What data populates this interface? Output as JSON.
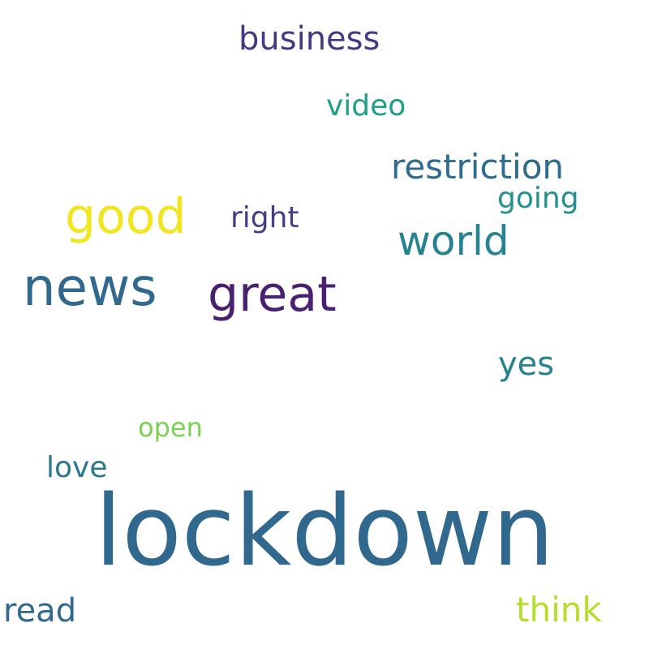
{
  "words": [
    {
      "id": "lockdown",
      "text": "lockdown",
      "color": "#31688e"
    },
    {
      "id": "news",
      "text": "news",
      "color": "#31688e"
    },
    {
      "id": "great",
      "text": "great",
      "color": "#482173"
    },
    {
      "id": "good",
      "text": "good",
      "color": "#f0e51e"
    },
    {
      "id": "world",
      "text": "world",
      "color": "#26828e"
    },
    {
      "id": "restriction",
      "text": "restriction",
      "color": "#2f6b8e"
    },
    {
      "id": "business",
      "text": "business",
      "color": "#443983"
    },
    {
      "id": "think",
      "text": "think",
      "color": "#b5de2b"
    },
    {
      "id": "read",
      "text": "read",
      "color": "#31688e"
    },
    {
      "id": "yes",
      "text": "yes",
      "color": "#26838e"
    },
    {
      "id": "love",
      "text": "love",
      "color": "#2a788e"
    },
    {
      "id": "right",
      "text": "right",
      "color": "#433e85"
    },
    {
      "id": "video",
      "text": "video",
      "color": "#1f9e89"
    },
    {
      "id": "going",
      "text": "going",
      "color": "#21918c"
    },
    {
      "id": "open",
      "text": "open",
      "color": "#7ad151"
    }
  ]
}
